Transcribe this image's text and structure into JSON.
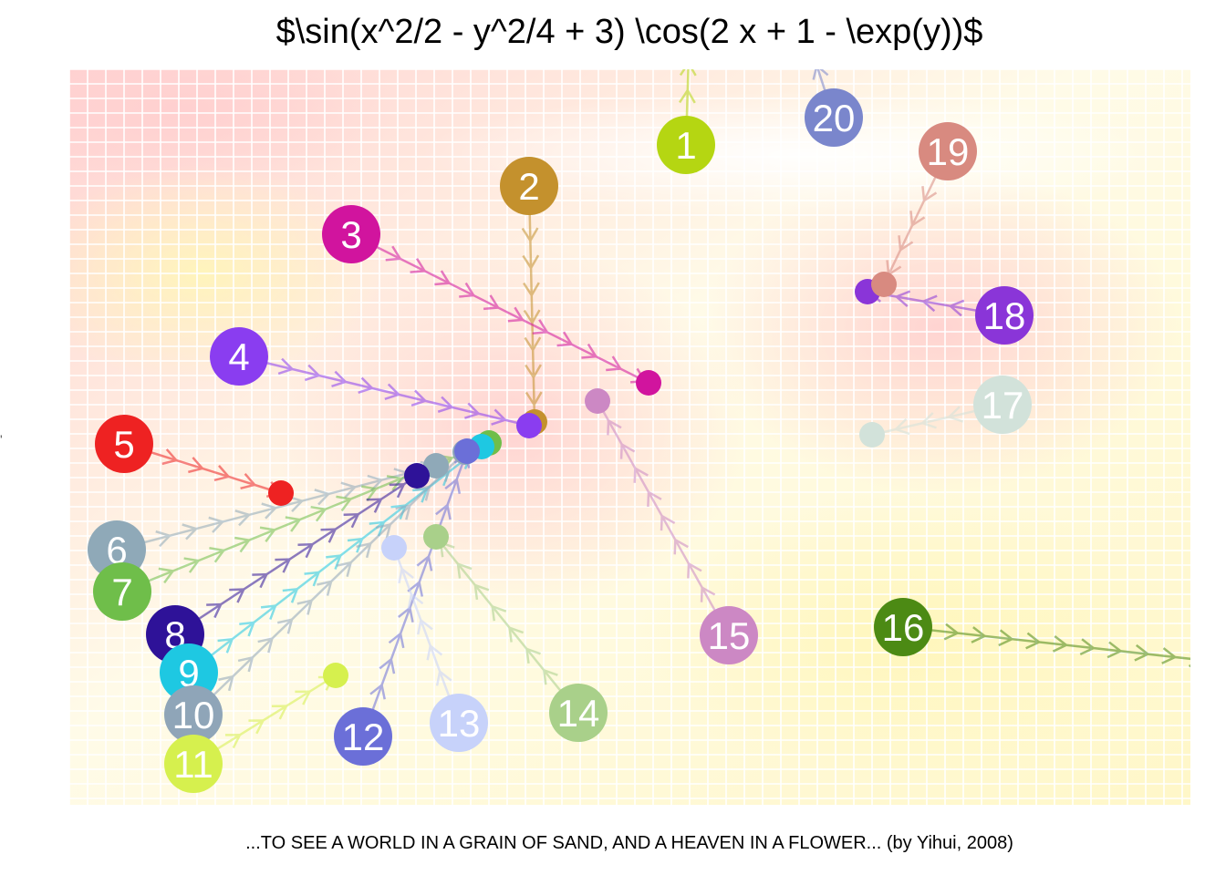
{
  "chart_data": {
    "type": "scatter",
    "title": "$\\sin(x^2/2 - y^2/4 + 3) \\cos(2 x + 1 - \\exp(y))$",
    "caption": "...TO SEE A WORLD IN A GRAIN OF SAND, AND A HEAVEN IN A FLOWER... (by Yihui, 2008)",
    "stray_tick": "'",
    "background_gradient": [
      "#ffd2d2",
      "#fffbe8",
      "#fff7c8"
    ],
    "grid": true,
    "grid_color": "#ffffff",
    "labels": [
      "1",
      "2",
      "3",
      "4",
      "5",
      "6",
      "7",
      "8",
      "9",
      "10",
      "11",
      "12",
      "13",
      "14",
      "15",
      "16",
      "17",
      "18",
      "19",
      "20"
    ],
    "points": [
      {
        "label": "1",
        "color": "#b5d612",
        "start": [
          752,
          159
        ],
        "end": [
          758,
          -40
        ]
      },
      {
        "label": "2",
        "color": "#c4912d",
        "start": [
          580,
          204
        ],
        "end": [
          586,
          463
        ]
      },
      {
        "label": "3",
        "color": "#d1149e",
        "start": [
          385,
          257
        ],
        "end": [
          711,
          420
        ]
      },
      {
        "label": "4",
        "color": "#8a3df0",
        "start": [
          262,
          391
        ],
        "end": [
          580,
          467
        ]
      },
      {
        "label": "5",
        "color": "#ee2222",
        "start": [
          136,
          487
        ],
        "end": [
          308,
          541
        ]
      },
      {
        "label": "6",
        "color": "#8fa9b8",
        "start": [
          128,
          603
        ],
        "end": [
          478,
          511
        ]
      },
      {
        "label": "7",
        "color": "#6fbe4a",
        "start": [
          134,
          649
        ],
        "end": [
          536,
          486
        ]
      },
      {
        "label": "8",
        "color": "#2e1298",
        "start": [
          192,
          696
        ],
        "end": [
          457,
          522
        ]
      },
      {
        "label": "9",
        "color": "#1ec8e2",
        "start": [
          207,
          738
        ],
        "end": [
          528,
          490
        ]
      },
      {
        "label": "10",
        "color": "#8fa5b8",
        "start": [
          212,
          784
        ],
        "end": [
          510,
          496
        ]
      },
      {
        "label": "11",
        "color": "#d6f04e",
        "start": [
          212,
          838
        ],
        "end": [
          368,
          741
        ]
      },
      {
        "label": "12",
        "color": "#6b6fd8",
        "start": [
          398,
          808
        ],
        "end": [
          512,
          495
        ]
      },
      {
        "label": "13",
        "color": "#c7d2fa",
        "start": [
          503,
          793
        ],
        "end": [
          432,
          601
        ]
      },
      {
        "label": "14",
        "color": "#a9d08a",
        "start": [
          634,
          782
        ],
        "end": [
          478,
          589
        ]
      },
      {
        "label": "15",
        "color": "#cc88c4",
        "start": [
          799,
          697
        ],
        "end": [
          655,
          440
        ]
      },
      {
        "label": "16",
        "color": "#4c8a14",
        "start": [
          990,
          688
        ],
        "end": [
          1370,
          730
        ]
      },
      {
        "label": "17",
        "color": "#d2e2da",
        "start": [
          1099,
          444
        ],
        "end": [
          956,
          477
        ]
      },
      {
        "label": "18",
        "color": "#8a35d8",
        "start": [
          1101,
          346
        ],
        "end": [
          951,
          320
        ]
      },
      {
        "label": "19",
        "color": "#d88a80",
        "start": [
          1039,
          166
        ],
        "end": [
          969,
          312
        ]
      },
      {
        "label": "20",
        "color": "#7a86cc",
        "start": [
          914,
          129
        ],
        "end": [
          885,
          40
        ]
      }
    ]
  }
}
